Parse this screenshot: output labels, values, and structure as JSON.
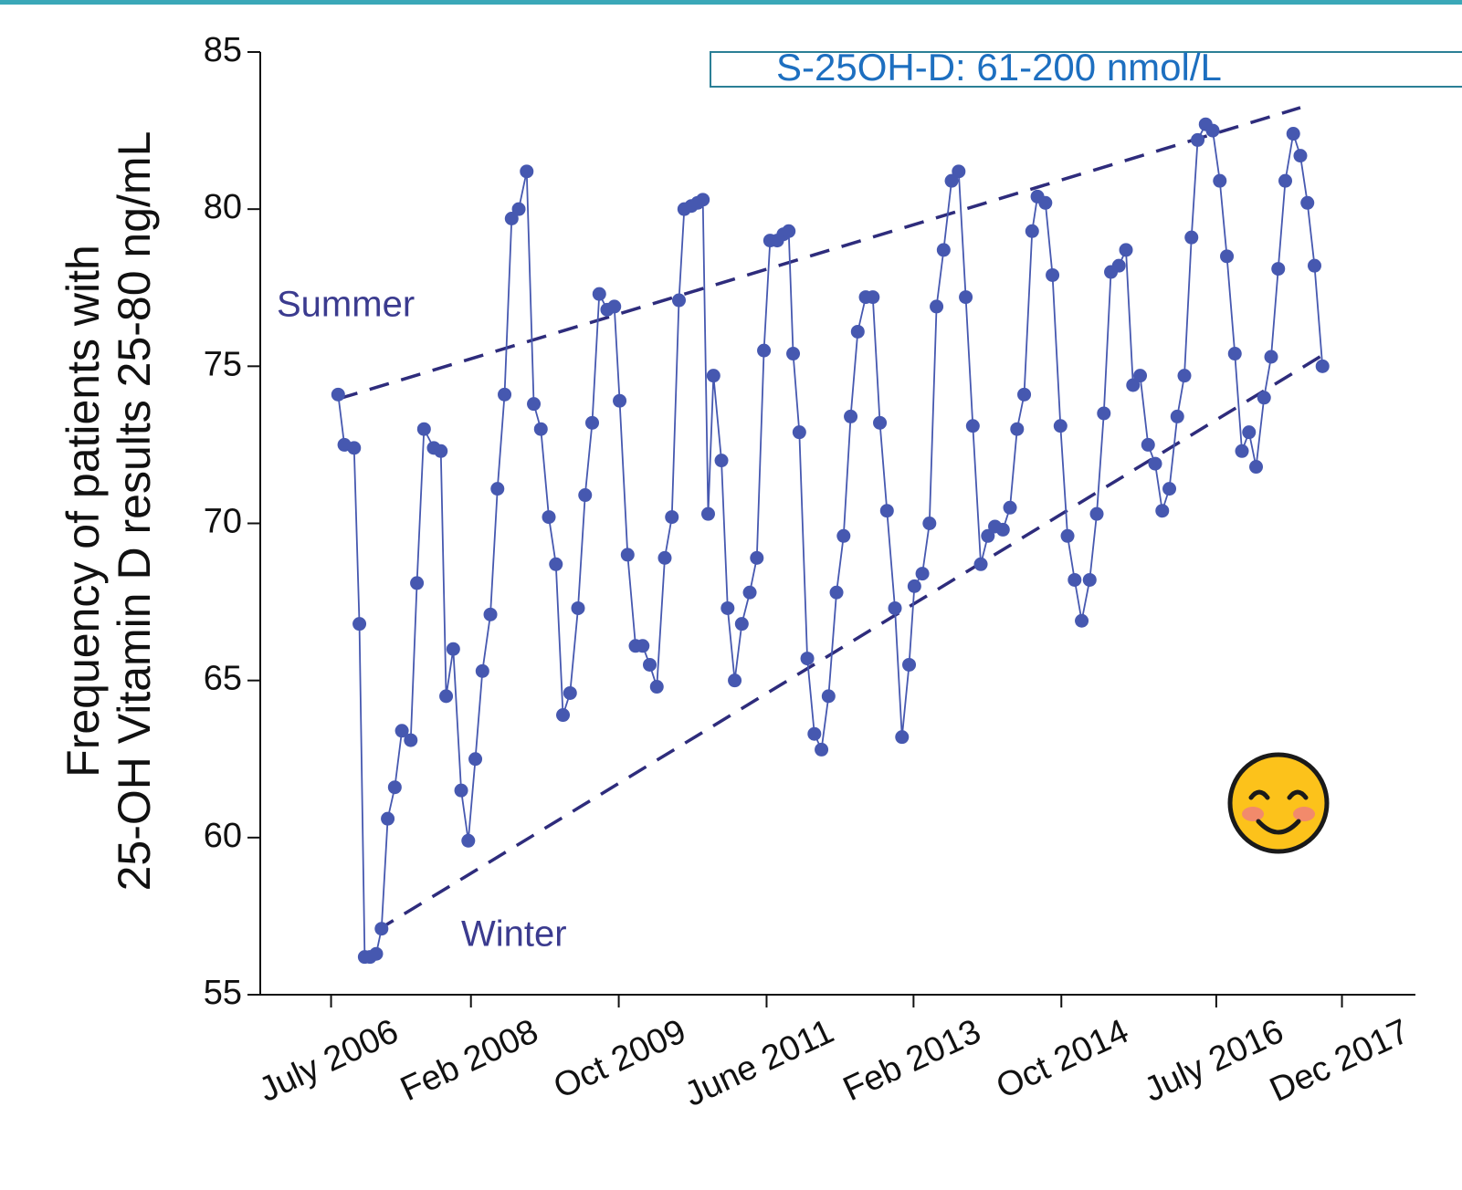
{
  "chart_data": {
    "type": "line",
    "y_label": [
      "Frequency of patients with",
      "25-OH Vitamin D results 25-80 ng/mL"
    ],
    "box_label": "S-25OH-D: 61-200 nmol/L",
    "annotations": [
      "Summer",
      "Winter"
    ],
    "xlim": [
      2005.7,
      2018.75
    ],
    "xticks": [
      {
        "value": 2006.5,
        "label": "July 2006"
      },
      {
        "value": 2008.08,
        "label": "Feb 2008"
      },
      {
        "value": 2009.75,
        "label": "Oct 2009"
      },
      {
        "value": 2011.42,
        "label": "June 2011"
      },
      {
        "value": 2013.08,
        "label": "Feb 2013"
      },
      {
        "value": 2014.75,
        "label": "Oct 2014"
      },
      {
        "value": 2016.5,
        "label": "July 2016"
      },
      {
        "value": 2017.92,
        "label": "Dec 2017"
      }
    ],
    "ylim": [
      55,
      85
    ],
    "yticks": [
      55,
      60,
      65,
      70,
      75,
      80,
      85
    ],
    "x": [
      2006.58,
      2006.65,
      2006.76,
      2006.82,
      2006.88,
      2006.94,
      2007.01,
      2007.07,
      2007.14,
      2007.22,
      2007.3,
      2007.4,
      2007.47,
      2007.55,
      2007.66,
      2007.74,
      2007.8,
      2007.88,
      2007.97,
      2008.05,
      2008.13,
      2008.21,
      2008.3,
      2008.38,
      2008.46,
      2008.54,
      2008.62,
      2008.71,
      2008.79,
      2008.87,
      2008.96,
      2009.04,
      2009.12,
      2009.2,
      2009.29,
      2009.37,
      2009.45,
      2009.53,
      2009.62,
      2009.7,
      2009.76,
      2009.85,
      2009.94,
      2010.02,
      2010.1,
      2010.18,
      2010.27,
      2010.35,
      2010.43,
      2010.49,
      2010.57,
      2010.64,
      2010.7,
      2010.76,
      2010.82,
      2010.91,
      2010.98,
      2011.06,
      2011.14,
      2011.23,
      2011.31,
      2011.39,
      2011.46,
      2011.54,
      2011.61,
      2011.67,
      2011.72,
      2011.79,
      2011.88,
      2011.96,
      2012.04,
      2012.12,
      2012.21,
      2012.29,
      2012.37,
      2012.45,
      2012.54,
      2012.62,
      2012.7,
      2012.78,
      2012.87,
      2012.95,
      2013.03,
      2013.09,
      2013.18,
      2013.26,
      2013.34,
      2013.42,
      2013.51,
      2013.59,
      2013.67,
      2013.75,
      2013.84,
      2013.92,
      2014.0,
      2014.09,
      2014.17,
      2014.25,
      2014.33,
      2014.42,
      2014.48,
      2014.57,
      2014.65,
      2014.74,
      2014.82,
      2014.9,
      2014.98,
      2015.07,
      2015.15,
      2015.23,
      2015.31,
      2015.4,
      2015.48,
      2015.56,
      2015.64,
      2015.73,
      2015.81,
      2015.89,
      2015.97,
      2016.06,
      2016.14,
      2016.22,
      2016.29,
      2016.38,
      2016.46,
      2016.54,
      2016.62,
      2016.71,
      2016.79,
      2016.87,
      2016.95,
      2017.04,
      2017.12,
      2017.2,
      2017.28,
      2017.37,
      2017.45,
      2017.53,
      2017.61,
      2017.7
    ],
    "series": [
      {
        "color": "#4658b0",
        "values": [
          74.1,
          72.5,
          72.4,
          66.8,
          56.2,
          56.2,
          56.3,
          57.1,
          60.6,
          61.6,
          63.4,
          63.1,
          68.1,
          73.0,
          72.4,
          72.3,
          64.5,
          66.0,
          61.5,
          59.9,
          62.5,
          65.3,
          67.1,
          71.1,
          74.1,
          79.7,
          80.0,
          81.2,
          73.8,
          73.0,
          70.2,
          68.7,
          63.9,
          64.6,
          67.3,
          70.9,
          73.2,
          77.3,
          76.8,
          76.9,
          73.9,
          69.0,
          66.1,
          66.1,
          65.5,
          64.8,
          68.9,
          70.2,
          77.1,
          80.0,
          80.1,
          80.2,
          80.3,
          70.3,
          74.7,
          72.0,
          67.3,
          65.0,
          66.8,
          67.8,
          68.9,
          75.5,
          79.0,
          79.0,
          79.2,
          79.3,
          75.4,
          72.9,
          65.7,
          63.3,
          62.8,
          64.5,
          67.8,
          69.6,
          73.4,
          76.1,
          77.2,
          77.2,
          73.2,
          70.4,
          67.3,
          63.2,
          65.5,
          68.0,
          68.4,
          70.0,
          76.9,
          78.7,
          80.9,
          81.2,
          77.2,
          73.1,
          68.7,
          69.6,
          69.9,
          69.8,
          70.5,
          73.0,
          74.1,
          79.3,
          80.4,
          80.2,
          77.9,
          73.1,
          69.6,
          68.2,
          66.9,
          68.2,
          70.3,
          73.5,
          78.0,
          78.2,
          78.7,
          74.4,
          74.7,
          72.5,
          71.9,
          70.4,
          71.1,
          73.4,
          74.7,
          79.1,
          82.2,
          82.7,
          82.5,
          80.9,
          78.5,
          75.4,
          72.3,
          72.9,
          71.8,
          74.0,
          75.3,
          78.1,
          80.9,
          82.4,
          81.7,
          80.2,
          78.2,
          75.0
        ]
      }
    ],
    "trend_lines": [
      {
        "color": "#2e2c7c",
        "x": [
          2006.58,
          2017.45
        ],
        "y": [
          73.96,
          83.23
        ]
      },
      {
        "color": "#2e2c7c",
        "x": [
          2007.01,
          2017.77
        ],
        "y": [
          57.03,
          75.47
        ]
      }
    ]
  }
}
